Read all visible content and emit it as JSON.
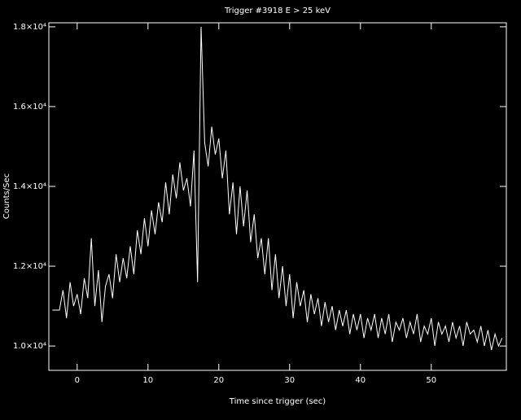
{
  "chart_data": {
    "type": "line",
    "title": "Trigger #3918 E > 25 keV",
    "xlabel": "Time since trigger (sec)",
    "ylabel": "Counts/Sec",
    "x": [
      -3.5,
      -3,
      -2.5,
      -2,
      -1.5,
      -1,
      -0.5,
      0,
      0.5,
      1,
      1.5,
      2,
      2.5,
      3,
      3.5,
      4,
      4.5,
      5,
      5.5,
      6,
      6.5,
      7,
      7.5,
      8,
      8.5,
      9,
      9.5,
      10,
      10.5,
      11,
      11.5,
      12,
      12.5,
      13,
      13.5,
      14,
      14.5,
      15,
      15.5,
      16,
      16.5,
      17,
      17.5,
      18,
      18.5,
      19,
      19.5,
      20,
      20.5,
      21,
      21.5,
      22,
      22.5,
      23,
      23.5,
      24,
      24.5,
      25,
      25.5,
      26,
      26.5,
      27,
      27.5,
      28,
      28.5,
      29,
      29.5,
      30,
      30.5,
      31,
      31.5,
      32,
      32.5,
      33,
      33.5,
      34,
      34.5,
      35,
      35.5,
      36,
      36.5,
      37,
      37.5,
      38,
      38.5,
      39,
      39.5,
      40,
      40.5,
      41,
      41.5,
      42,
      42.5,
      43,
      43.5,
      44,
      44.5,
      45,
      45.5,
      46,
      46.5,
      47,
      47.5,
      48,
      48.5,
      49,
      49.5,
      50,
      50.5,
      51,
      51.5,
      52,
      52.5,
      53,
      53.5,
      54,
      54.5,
      55,
      55.5,
      56,
      56.5,
      57,
      57.5,
      58,
      58.5,
      59,
      59.5,
      60
    ],
    "series": [
      {
        "color": "#ffffff",
        "values": [
          10900,
          10900,
          10900,
          11400,
          10700,
          11600,
          11000,
          11300,
          10800,
          11700,
          11200,
          12700,
          11000,
          11900,
          10600,
          11500,
          11800,
          11200,
          12300,
          11600,
          12200,
          11700,
          12500,
          11800,
          12900,
          12300,
          13200,
          12500,
          13400,
          12800,
          13600,
          13100,
          14100,
          13300,
          14300,
          13700,
          14600,
          13900,
          14200,
          13500,
          14900,
          11600,
          18000,
          15100,
          14500,
          15500,
          14800,
          15200,
          14200,
          14900,
          13300,
          14100,
          12800,
          14000,
          13000,
          13900,
          12600,
          13300,
          12200,
          12700,
          11800,
          12700,
          11400,
          12300,
          11200,
          12000,
          11000,
          11800,
          10700,
          11600,
          11000,
          11400,
          10600,
          11300,
          10800,
          11200,
          10500,
          11100,
          10600,
          11000,
          10400,
          10900,
          10500,
          10900,
          10300,
          10800,
          10400,
          10800,
          10200,
          10700,
          10400,
          10800,
          10200,
          10700,
          10300,
          10800,
          10100,
          10600,
          10400,
          10700,
          10200,
          10600,
          10300,
          10800,
          10100,
          10500,
          10300,
          10700,
          10000,
          10600,
          10300,
          10500,
          10100,
          10600,
          10200,
          10500,
          10000,
          10600,
          10300,
          10400,
          10100,
          10500,
          10000,
          10400,
          9900,
          10300,
          10000,
          10200
        ]
      }
    ],
    "xlim": [
      -4,
      60.6
    ],
    "ylim": [
      9390,
      18100
    ],
    "xticks": [
      0,
      10,
      20,
      30,
      40,
      50
    ],
    "yticks": [
      {
        "value": 10000,
        "label": "1.0×10⁴"
      },
      {
        "value": 12000,
        "label": "1.2×10⁴"
      },
      {
        "value": 14000,
        "label": "1.4×10⁴"
      },
      {
        "value": 16000,
        "label": "1.6×10⁴"
      },
      {
        "value": 18000,
        "label": "1.8×10⁴"
      }
    ]
  }
}
